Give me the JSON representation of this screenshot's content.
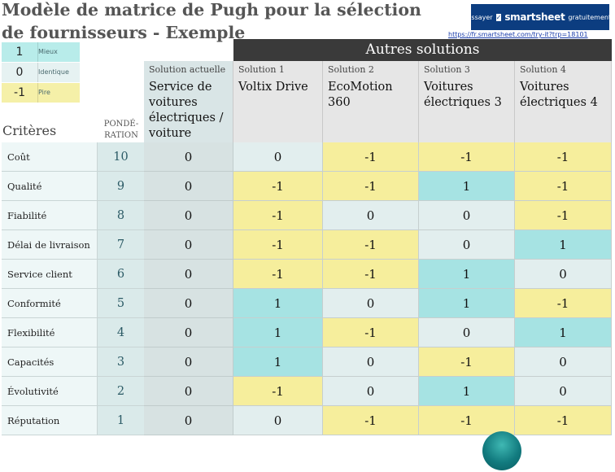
{
  "title": "Modèle de matrice de Pugh pour la sélection de fournisseurs - Exemple",
  "banner": {
    "pre": "Essayer",
    "brand": "smartsheet",
    "post": "gratuitement.",
    "url": "https://fr.smartsheet.com/try-it?trp=18101"
  },
  "legend": [
    {
      "value": "1",
      "label": "Mieux",
      "color": "#b8ecea"
    },
    {
      "value": "0",
      "label": "Identique",
      "color": "#e6f2f2"
    },
    {
      "value": "-1",
      "label": "Pire",
      "color": "#f5f0a8"
    }
  ],
  "colors": {
    "better": "#a6e3e3",
    "same": "#e2eeee",
    "worse": "#f6ee9c",
    "header_dark": "#3a3a3a"
  },
  "autres_solutions": "Autres solutions",
  "headers": {
    "criteria": "Critères",
    "weight": "PONDÉ-RATION",
    "current": {
      "sub": "Solution actuelle",
      "name": "Service de voitures électriques / voiture"
    },
    "solutions": [
      {
        "sub": "Solution 1",
        "name": "Voltix Drive"
      },
      {
        "sub": "Solution 2",
        "name": "EcoMotion 360"
      },
      {
        "sub": "Solution 3",
        "name": "Voitures électriques 3"
      },
      {
        "sub": "Solution 4",
        "name": "Voitures électriques 4"
      }
    ]
  },
  "rows": [
    {
      "criterion": "Coût",
      "weight": "10",
      "current": "0",
      "scores": [
        "0",
        "-1",
        "-1",
        "-1"
      ]
    },
    {
      "criterion": "Qualité",
      "weight": "9",
      "current": "0",
      "scores": [
        "-1",
        "-1",
        "1",
        "-1"
      ]
    },
    {
      "criterion": "Fiabilité",
      "weight": "8",
      "current": "0",
      "scores": [
        "-1",
        "0",
        "0",
        "-1"
      ]
    },
    {
      "criterion": "Délai de livraison",
      "weight": "7",
      "current": "0",
      "scores": [
        "-1",
        "-1",
        "0",
        "1"
      ]
    },
    {
      "criterion": "Service client",
      "weight": "6",
      "current": "0",
      "scores": [
        "-1",
        "-1",
        "1",
        "0"
      ]
    },
    {
      "criterion": "Conformité",
      "weight": "5",
      "current": "0",
      "scores": [
        "1",
        "0",
        "1",
        "-1"
      ]
    },
    {
      "criterion": "Flexibilité",
      "weight": "4",
      "current": "0",
      "scores": [
        "1",
        "-1",
        "0",
        "1"
      ]
    },
    {
      "criterion": "Capacités techniques",
      "weight": "3",
      "current": "0",
      "scores": [
        "1",
        "0",
        "-1",
        "0"
      ]
    },
    {
      "criterion": "Évolutivité",
      "weight": "2",
      "current": "0",
      "scores": [
        "-1",
        "0",
        "1",
        "0"
      ]
    },
    {
      "criterion": "Réputation",
      "weight": "1",
      "current": "0",
      "scores": [
        "0",
        "-1",
        "-1",
        "-1"
      ]
    }
  ]
}
